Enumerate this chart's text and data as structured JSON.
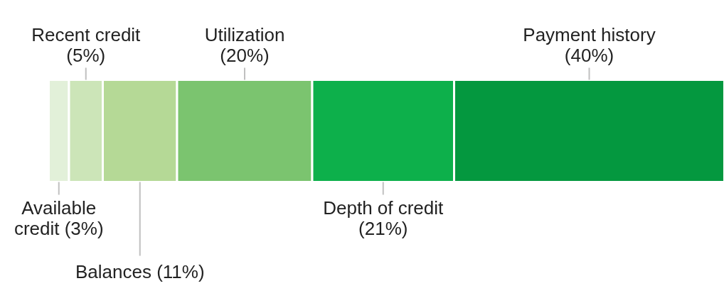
{
  "chart_data": {
    "type": "bar",
    "stacked": true,
    "orientation": "horizontal",
    "categories": [
      null
    ],
    "series": [
      {
        "name": "Available credit",
        "color": "#e2f0d9",
        "values": [
          3
        ],
        "value_labels": [
          "(3%)"
        ]
      },
      {
        "name": "Recent credit",
        "color": "#cce5b8",
        "values": [
          5
        ],
        "value_labels": [
          "(5%)"
        ]
      },
      {
        "name": "Balances",
        "color": "#b5d996",
        "values": [
          11
        ],
        "value_labels": [
          "(11%)"
        ]
      },
      {
        "name": "Utilization",
        "color": "#7bc46f",
        "values": [
          20
        ],
        "value_labels": [
          "(20%)"
        ]
      },
      {
        "name": "Depth of credit",
        "color": "#0db04b",
        "values": [
          21
        ],
        "value_labels": [
          "(21%)"
        ]
      },
      {
        "name": "Payment history",
        "color": "#04983f",
        "values": [
          40
        ],
        "value_labels": [
          "(40%)"
        ]
      }
    ]
  }
}
